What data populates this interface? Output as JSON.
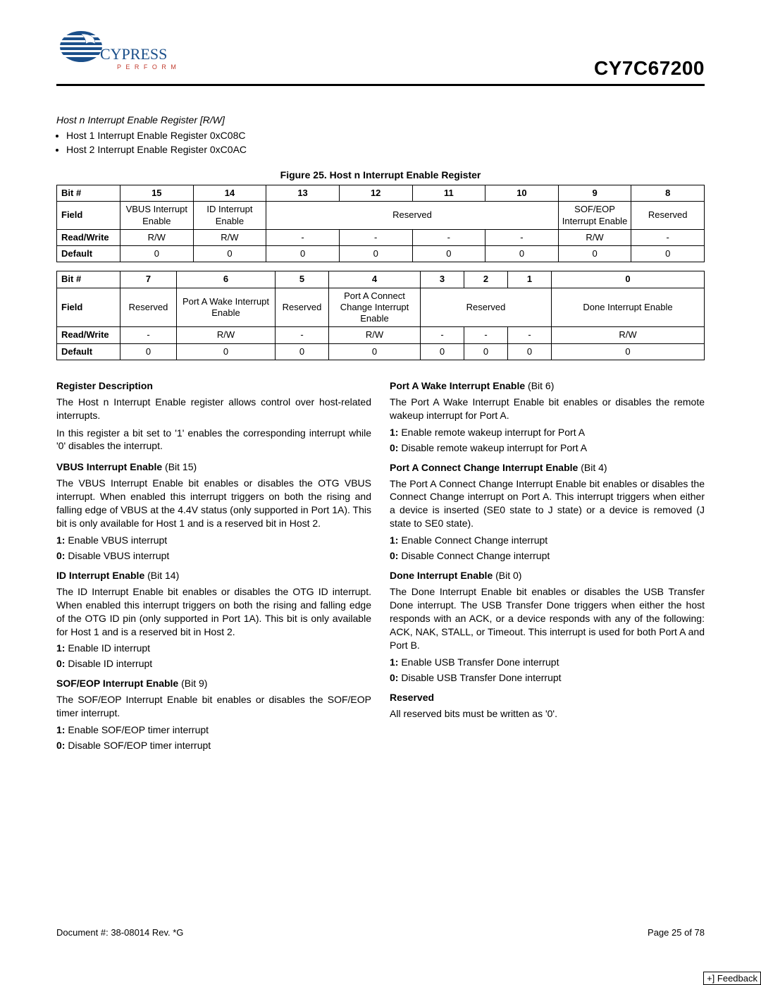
{
  "header": {
    "logo_text": "CYPRESS",
    "logo_sub": "P E R F O R M",
    "product_code": "CY7C67200"
  },
  "section": {
    "title": "Host n Interrupt Enable Register [R/W]",
    "bullets": [
      "Host 1 Interrupt Enable Register 0xC08C",
      "Host 2 Interrupt Enable Register 0xC0AC"
    ]
  },
  "figure_caption": "Figure 25. Host n Interrupt Enable Register",
  "table1": {
    "rowlabels": [
      "Bit #",
      "Field",
      "Read/Write",
      "Default"
    ],
    "bits": [
      "15",
      "14",
      "13",
      "12",
      "11",
      "10",
      "9",
      "8"
    ],
    "fields": [
      {
        "label": "VBUS Interrupt Enable",
        "span": 1
      },
      {
        "label": "ID Interrupt Enable",
        "span": 1
      },
      {
        "label": "Reserved",
        "span": 4
      },
      {
        "label": "SOF/EOP Interrupt Enable",
        "span": 1
      },
      {
        "label": "Reserved",
        "span": 1
      }
    ],
    "rw": [
      "R/W",
      "R/W",
      "-",
      "-",
      "-",
      "-",
      "R/W",
      "-"
    ],
    "default": [
      "0",
      "0",
      "0",
      "0",
      "0",
      "0",
      "0",
      "0"
    ]
  },
  "table2": {
    "rowlabels": [
      "Bit #",
      "Field",
      "Read/Write",
      "Default"
    ],
    "bits": [
      "7",
      "6",
      "5",
      "4",
      "3",
      "2",
      "1",
      "0"
    ],
    "fields": [
      {
        "label": "Reserved",
        "span": 1
      },
      {
        "label": "Port A Wake Interrupt Enable",
        "span": 1
      },
      {
        "label": "Reserved",
        "span": 1
      },
      {
        "label": "Port A Connect Change Interrupt Enable",
        "span": 1
      },
      {
        "label": "Reserved",
        "span": 3
      },
      {
        "label": "Done Interrupt Enable",
        "span": 1
      }
    ],
    "rw": [
      "-",
      "R/W",
      "-",
      "R/W",
      "-",
      "-",
      "-",
      "R/W"
    ],
    "default": [
      "0",
      "0",
      "0",
      "0",
      "0",
      "0",
      "0",
      "0"
    ]
  },
  "body": {
    "left": [
      {
        "type": "h",
        "text": "Register Description"
      },
      {
        "type": "p",
        "text": "The Host n Interrupt Enable register allows control over host-related interrupts."
      },
      {
        "type": "p",
        "text": "In this register a bit set to '1' enables the corresponding interrupt while '0' disables the interrupt."
      },
      {
        "type": "h",
        "text": "VBUS Interrupt Enable (Bit 15)"
      },
      {
        "type": "p",
        "text": "The VBUS Interrupt Enable bit enables or disables the OTG VBUS interrupt. When enabled this interrupt triggers on both the rising and falling edge of VBUS at the 4.4V status (only supported in Port 1A). This bit is only available for Host 1 and is a reserved bit in Host 2."
      },
      {
        "type": "bit",
        "label": "1:",
        "text": "Enable VBUS interrupt"
      },
      {
        "type": "bit",
        "label": "0:",
        "text": "Disable VBUS interrupt"
      },
      {
        "type": "h",
        "text": "ID Interrupt Enable (Bit 14)"
      },
      {
        "type": "p",
        "text": "The ID Interrupt Enable bit enables or disables the OTG ID interrupt. When enabled this interrupt triggers on both the rising and falling edge of the OTG ID pin (only supported in Port 1A). This bit is only available for Host 1 and is a reserved bit in Host 2."
      },
      {
        "type": "bit",
        "label": "1:",
        "text": "Enable ID interrupt"
      },
      {
        "type": "bit",
        "label": "0:",
        "text": "Disable ID interrupt"
      },
      {
        "type": "h",
        "text": "SOF/EOP Interrupt Enable (Bit 9)"
      },
      {
        "type": "p",
        "text": "The SOF/EOP Interrupt Enable bit enables or disables the SOF/EOP timer interrupt."
      },
      {
        "type": "bit",
        "label": "1:",
        "text": "Enable SOF/EOP timer interrupt"
      },
      {
        "type": "bit",
        "label": "0:",
        "text": "Disable SOF/EOP timer interrupt"
      }
    ],
    "right": [
      {
        "type": "h",
        "text": "Port A Wake Interrupt Enable (Bit 6)"
      },
      {
        "type": "p",
        "text": "The Port A Wake Interrupt Enable bit enables or disables the remote wakeup interrupt for Port A."
      },
      {
        "type": "bit",
        "label": "1:",
        "text": "Enable remote wakeup interrupt for Port A"
      },
      {
        "type": "bit",
        "label": "0:",
        "text": "Disable remote wakeup interrupt for Port A"
      },
      {
        "type": "h",
        "text": "Port A Connect Change Interrupt Enable (Bit 4)"
      },
      {
        "type": "p",
        "text": "The Port A Connect Change Interrupt Enable bit enables or disables the Connect Change interrupt on Port A. This interrupt triggers when either a device is inserted (SE0 state to J state) or a device is removed (J state to SE0 state)."
      },
      {
        "type": "bit",
        "label": "1:",
        "text": "Enable Connect Change interrupt"
      },
      {
        "type": "bit",
        "label": "0:",
        "text": "Disable Connect Change interrupt"
      },
      {
        "type": "h",
        "text": "Done Interrupt Enable (Bit 0)"
      },
      {
        "type": "p",
        "text": "The Done Interrupt Enable bit enables or disables the USB Transfer Done interrupt. The USB Transfer Done triggers when either the host responds with an ACK, or a device responds with any of the following: ACK, NAK, STALL, or Timeout. This interrupt is used for both Port A and Port B."
      },
      {
        "type": "bit",
        "label": "1:",
        "text": "Enable USB Transfer Done interrupt"
      },
      {
        "type": "bit",
        "label": "0:",
        "text": "Disable USB Transfer Done interrupt"
      },
      {
        "type": "h",
        "text": "Reserved"
      },
      {
        "type": "p",
        "text": "All reserved bits must be written as '0'."
      }
    ]
  },
  "footer": {
    "doc": "Document #: 38-08014 Rev. *G",
    "page": "Page 25 of 78",
    "feedback": "+] Feedback"
  },
  "colors": {
    "logo_blue": "#1b4f8a",
    "logo_red": "#c23b2e",
    "border": "#000000",
    "text": "#000000",
    "bg": "#ffffff"
  }
}
